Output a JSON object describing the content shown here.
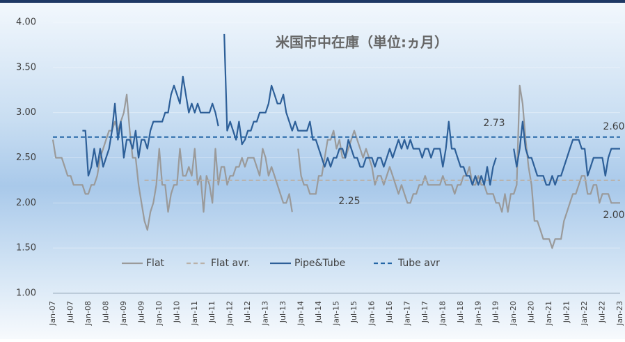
{
  "chart_data": {
    "type": "line",
    "title": "米国市中在庫（単位:ヵ月）",
    "categories": [
      "Jan-07",
      null,
      null,
      null,
      null,
      null,
      "Jul-07",
      null,
      null,
      null,
      null,
      null,
      "Jan-08",
      null,
      null,
      null,
      null,
      null,
      "Jul-08",
      null,
      null,
      null,
      null,
      null,
      "Jan-09",
      null,
      null,
      null,
      null,
      null,
      "Jul-09",
      null,
      null,
      null,
      null,
      null,
      "Jan-10",
      null,
      null,
      null,
      null,
      null,
      "Jul-10",
      null,
      null,
      null,
      null,
      null,
      "Jan-11",
      null,
      null,
      null,
      null,
      null,
      "Jul-11",
      null,
      null,
      null,
      null,
      null,
      "Jan-12",
      null,
      null,
      null,
      null,
      null,
      "Jul-12",
      null,
      null,
      null,
      null,
      null,
      "Jan-13",
      null,
      null,
      null,
      null,
      null,
      "Jul-13",
      null,
      null,
      null,
      null,
      null,
      "Jan-14",
      null,
      null,
      null,
      null,
      null,
      "Jul-14",
      null,
      null,
      null,
      null,
      null,
      "Jan-15",
      null,
      null,
      null,
      null,
      null,
      "Jul-15",
      null,
      null,
      null,
      null,
      null,
      "Jan-16",
      null,
      null,
      null,
      null,
      null,
      "Jul-16",
      null,
      null,
      null,
      null,
      null,
      "Jan-17",
      null,
      null,
      null,
      null,
      null,
      "Jul-17",
      null,
      null,
      null,
      null,
      null,
      "Jan-18",
      null,
      null,
      null,
      null,
      null,
      "Jul-18",
      null,
      null,
      null,
      null,
      null,
      "Jan-19",
      null,
      null,
      null,
      null,
      null,
      "Jul-19",
      null,
      null,
      null,
      null,
      null,
      "Jan-20",
      null,
      null,
      null,
      null,
      null,
      "Jul-20",
      null,
      null,
      null,
      null,
      null,
      "Jan-21",
      null,
      null,
      null,
      null,
      null,
      "Jul-21",
      null,
      null,
      null,
      null,
      null,
      "Jan-22",
      null,
      null,
      null,
      null,
      null,
      "Jul-22",
      null,
      null,
      null,
      null,
      null,
      "Jan-23"
    ],
    "series": [
      {
        "name": "Flat",
        "color": "#9a9a9a",
        "dashed": false,
        "values": [
          2.7,
          2.5,
          2.5,
          2.5,
          2.4,
          2.3,
          2.3,
          2.2,
          2.2,
          2.2,
          2.2,
          2.1,
          2.1,
          2.2,
          2.2,
          2.3,
          2.5,
          2.6,
          2.7,
          2.8,
          2.8,
          2.9,
          2.8,
          2.9,
          3.0,
          3.2,
          2.8,
          2.5,
          2.5,
          2.2,
          2.0,
          1.8,
          1.7,
          1.9,
          2.0,
          2.2,
          2.6,
          2.2,
          2.2,
          1.9,
          2.1,
          2.2,
          2.2,
          2.6,
          2.3,
          2.3,
          2.4,
          2.3,
          2.6,
          2.2,
          2.3,
          1.9,
          2.3,
          2.2,
          2.0,
          2.6,
          2.2,
          2.4,
          2.4,
          2.2,
          2.3,
          2.3,
          2.4,
          2.4,
          2.5,
          2.4,
          2.5,
          2.5,
          2.5,
          2.4,
          2.3,
          2.6,
          2.5,
          2.3,
          2.4,
          2.3,
          2.2,
          2.1,
          2.0,
          2.0,
          2.1,
          1.9,
          null,
          2.6,
          2.3,
          2.2,
          2.2,
          2.1,
          2.1,
          2.1,
          2.3,
          2.3,
          2.5,
          2.7,
          2.7,
          2.8,
          2.6,
          2.7,
          2.5,
          2.5,
          2.6,
          2.7,
          2.8,
          2.7,
          2.6,
          2.5,
          2.6,
          2.5,
          2.4,
          2.2,
          2.3,
          2.3,
          2.2,
          2.3,
          2.4,
          2.3,
          2.2,
          2.1,
          2.2,
          2.1,
          2.0,
          2.0,
          2.1,
          2.1,
          2.2,
          2.2,
          2.3,
          2.2,
          2.2,
          2.2,
          2.2,
          2.2,
          2.3,
          2.2,
          2.2,
          2.2,
          2.1,
          2.2,
          2.2,
          2.3,
          2.3,
          2.4,
          2.2,
          2.2,
          2.3,
          2.2,
          2.2,
          2.1,
          2.1,
          2.1,
          2.0,
          2.0,
          1.9,
          2.1,
          1.9,
          2.1,
          2.1,
          2.2,
          3.3,
          3.1,
          2.7,
          2.4,
          2.2,
          1.8,
          1.8,
          1.7,
          1.6,
          1.6,
          1.6,
          1.5,
          1.6,
          1.6,
          1.6,
          1.8,
          1.9,
          2.0,
          2.1,
          2.1,
          2.2,
          2.3,
          2.3,
          2.1,
          2.1,
          2.2,
          2.2,
          2.0,
          2.1,
          2.1,
          2.1,
          2.0,
          2.0,
          2.0,
          2.0
        ]
      },
      {
        "name": "Flat avr.",
        "color": "#b9b1a9",
        "dashed": true,
        "values": [
          null,
          null,
          null,
          null,
          null,
          null,
          null,
          null,
          null,
          null,
          null,
          null,
          null,
          null,
          null,
          null,
          null,
          null,
          null,
          null,
          null,
          null,
          null,
          null,
          null,
          null,
          null,
          null,
          null,
          null,
          null,
          2.25,
          2.25,
          2.25,
          2.25,
          2.25,
          2.25,
          2.25,
          2.25,
          2.25,
          2.25,
          2.25,
          2.25,
          2.25,
          2.25,
          2.25,
          2.25,
          2.25,
          2.25,
          2.25,
          2.25,
          2.25,
          2.25,
          2.25,
          2.25,
          2.25,
          2.25,
          2.25,
          2.25,
          2.25,
          2.25,
          2.25,
          2.25,
          2.25,
          2.25,
          2.25,
          2.25,
          2.25,
          2.25,
          2.25,
          2.25,
          2.25,
          2.25,
          2.25,
          2.25,
          2.25,
          2.25,
          2.25,
          2.25,
          2.25,
          2.25,
          2.25,
          2.25,
          2.25,
          2.25,
          2.25,
          2.25,
          2.25,
          2.25,
          2.25,
          2.25,
          2.25,
          2.25,
          2.25,
          2.25,
          2.25,
          2.25,
          2.25,
          2.25,
          2.25,
          2.25,
          2.25,
          2.25,
          2.25,
          2.25,
          2.25,
          2.25,
          2.25,
          2.25,
          2.25,
          2.25,
          2.25,
          2.25,
          2.25,
          2.25,
          2.25,
          2.25,
          2.25,
          2.25,
          2.25,
          2.25,
          2.25,
          2.25,
          2.25,
          2.25,
          2.25,
          2.25,
          2.25,
          2.25,
          2.25,
          2.25,
          2.25,
          2.25,
          2.25,
          2.25,
          2.25,
          2.25,
          2.25,
          2.25,
          2.25,
          2.25,
          2.25,
          2.25,
          2.25,
          2.25,
          2.25,
          2.25,
          2.25,
          2.25,
          2.25,
          2.25,
          2.25,
          2.25,
          2.25,
          2.25,
          2.25,
          2.25,
          2.25,
          2.25,
          2.25,
          2.25,
          2.25,
          2.25,
          2.25,
          2.25,
          2.25,
          2.25,
          2.25,
          2.25,
          2.25,
          2.25,
          2.25,
          2.25,
          2.25,
          2.25,
          2.25,
          2.25,
          2.25,
          2.25,
          2.25,
          2.25,
          2.25,
          2.25,
          2.25,
          2.25,
          2.25,
          2.25,
          2.25,
          2.25,
          2.25,
          2.25,
          2.25,
          2.25
        ]
      },
      {
        "name": "Pipe&Tube",
        "color": "#2d5f98",
        "dashed": false,
        "values": [
          null,
          null,
          null,
          null,
          null,
          null,
          null,
          null,
          null,
          null,
          2.8,
          2.8,
          2.3,
          2.4,
          2.6,
          2.4,
          2.6,
          2.4,
          2.5,
          2.6,
          2.8,
          3.1,
          2.7,
          2.9,
          2.5,
          2.7,
          2.7,
          2.6,
          2.8,
          2.5,
          2.7,
          2.7,
          2.6,
          2.8,
          2.9,
          2.9,
          2.9,
          2.9,
          3.0,
          3.0,
          3.2,
          3.3,
          3.2,
          3.1,
          3.4,
          3.2,
          3.0,
          3.1,
          3.0,
          3.1,
          3.0,
          3.0,
          3.0,
          3.0,
          3.1,
          3.0,
          2.85,
          null,
          3.87,
          2.8,
          2.9,
          2.8,
          2.7,
          2.9,
          2.65,
          2.7,
          2.8,
          2.8,
          2.9,
          2.9,
          3.0,
          3.0,
          3.0,
          3.1,
          3.3,
          3.2,
          3.1,
          3.1,
          3.2,
          3.0,
          2.9,
          2.8,
          2.9,
          2.8,
          2.8,
          2.8,
          2.8,
          2.9,
          2.7,
          2.7,
          2.6,
          2.5,
          2.4,
          2.5,
          2.4,
          2.5,
          2.5,
          2.6,
          2.6,
          2.5,
          2.7,
          2.6,
          2.5,
          2.5,
          2.4,
          2.4,
          2.5,
          2.5,
          2.5,
          2.4,
          2.5,
          2.5,
          2.4,
          2.5,
          2.6,
          2.5,
          2.6,
          2.7,
          2.6,
          2.7,
          2.6,
          2.7,
          2.6,
          2.6,
          2.6,
          2.5,
          2.6,
          2.6,
          2.5,
          2.6,
          2.6,
          2.6,
          2.4,
          2.6,
          2.9,
          2.6,
          2.6,
          2.5,
          2.4,
          2.4,
          2.3,
          2.3,
          2.2,
          2.3,
          2.2,
          2.3,
          2.2,
          2.4,
          2.2,
          2.4,
          2.5,
          null,
          null,
          null,
          null,
          null,
          2.6,
          2.4,
          2.6,
          2.9,
          2.6,
          2.5,
          2.5,
          2.4,
          2.3,
          2.3,
          2.3,
          2.2,
          2.2,
          2.3,
          2.2,
          2.3,
          2.3,
          2.4,
          2.5,
          2.6,
          2.7,
          2.7,
          2.7,
          2.6,
          2.6,
          2.3,
          2.4,
          2.5,
          2.5,
          2.5,
          2.5,
          2.3,
          2.5,
          2.6,
          2.6,
          2.6,
          2.6
        ]
      },
      {
        "name": "Tube avr",
        "color": "#2466a6",
        "dashed": true,
        "values": [
          2.73,
          2.73,
          2.73,
          2.73,
          2.73,
          2.73,
          2.73,
          2.73,
          2.73,
          2.73,
          2.73,
          2.73,
          2.73,
          2.73,
          2.73,
          2.73,
          2.73,
          2.73,
          2.73,
          2.73,
          2.73,
          2.73,
          2.73,
          2.73,
          2.73,
          2.73,
          2.73,
          2.73,
          2.73,
          2.73,
          2.73,
          2.73,
          2.73,
          2.73,
          2.73,
          2.73,
          2.73,
          2.73,
          2.73,
          2.73,
          2.73,
          2.73,
          2.73,
          2.73,
          2.73,
          2.73,
          2.73,
          2.73,
          2.73,
          2.73,
          2.73,
          2.73,
          2.73,
          2.73,
          2.73,
          2.73,
          2.73,
          2.73,
          2.73,
          2.73,
          2.73,
          2.73,
          2.73,
          2.73,
          2.73,
          2.73,
          2.73,
          2.73,
          2.73,
          2.73,
          2.73,
          2.73,
          2.73,
          2.73,
          2.73,
          2.73,
          2.73,
          2.73,
          2.73,
          2.73,
          2.73,
          2.73,
          2.73,
          2.73,
          2.73,
          2.73,
          2.73,
          2.73,
          2.73,
          2.73,
          2.73,
          2.73,
          2.73,
          2.73,
          2.73,
          2.73,
          2.73,
          2.73,
          2.73,
          2.73,
          2.73,
          2.73,
          2.73,
          2.73,
          2.73,
          2.73,
          2.73,
          2.73,
          2.73,
          2.73,
          2.73,
          2.73,
          2.73,
          2.73,
          2.73,
          2.73,
          2.73,
          2.73,
          2.73,
          2.73,
          2.73,
          2.73,
          2.73,
          2.73,
          2.73,
          2.73,
          2.73,
          2.73,
          2.73,
          2.73,
          2.73,
          2.73,
          2.73,
          2.73,
          2.73,
          2.73,
          2.73,
          2.73,
          2.73,
          2.73,
          2.73,
          2.73,
          2.73,
          2.73,
          2.73,
          2.73,
          2.73,
          2.73,
          2.73,
          2.73,
          2.73,
          2.73,
          2.73,
          2.73,
          2.73,
          2.73,
          2.73,
          2.73,
          2.73,
          2.73,
          2.73,
          2.73,
          2.73,
          2.73,
          2.73,
          2.73,
          2.73,
          2.73,
          2.73,
          2.73,
          2.73,
          2.73,
          2.73,
          2.73,
          2.73,
          2.73,
          2.73,
          2.73,
          2.73,
          2.73,
          2.73,
          2.73,
          2.73,
          2.73,
          2.73,
          2.73,
          2.73,
          2.73,
          2.73,
          2.73,
          2.73,
          2.73,
          2.73
        ]
      }
    ],
    "annotations": [
      "2.73",
      "2.25",
      "2.60",
      "2.00"
    ],
    "ylim": [
      1,
      4
    ],
    "yticks": [
      {
        "value": 1,
        "label": "1.00"
      },
      {
        "value": 1.5,
        "label": "1.50"
      },
      {
        "value": 2,
        "label": "2.00"
      },
      {
        "value": 2.5,
        "label": "2.50"
      },
      {
        "value": 3,
        "label": "3.00"
      },
      {
        "value": 3.5,
        "label": "3.50"
      },
      {
        "value": 4,
        "label": "4.00"
      }
    ],
    "grid": true,
    "legend": "bottom"
  }
}
